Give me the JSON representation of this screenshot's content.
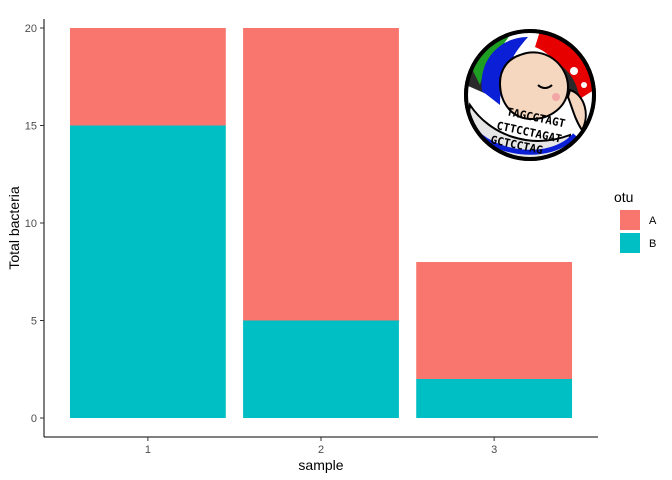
{
  "chart_data": {
    "type": "bar",
    "stacked": true,
    "categories": [
      "1",
      "2",
      "3"
    ],
    "series": [
      {
        "name": "A",
        "color": "#F8766D",
        "values": [
          5,
          15,
          6
        ]
      },
      {
        "name": "B",
        "color": "#00BFC4",
        "values": [
          15,
          5,
          2
        ]
      }
    ],
    "xlabel": "sample",
    "ylabel": "Total bacteria",
    "ylim": [
      0,
      20
    ],
    "yticks": [
      0,
      5,
      10,
      15,
      20
    ],
    "grid": false,
    "legend": {
      "title": "otu",
      "position": "right"
    }
  },
  "logo": {
    "name": "dna-sequence-mascot-logo",
    "text_lines": [
      "TAGCGTAGT",
      "CTTCCTAGAT",
      "GCTCCTAG"
    ]
  }
}
